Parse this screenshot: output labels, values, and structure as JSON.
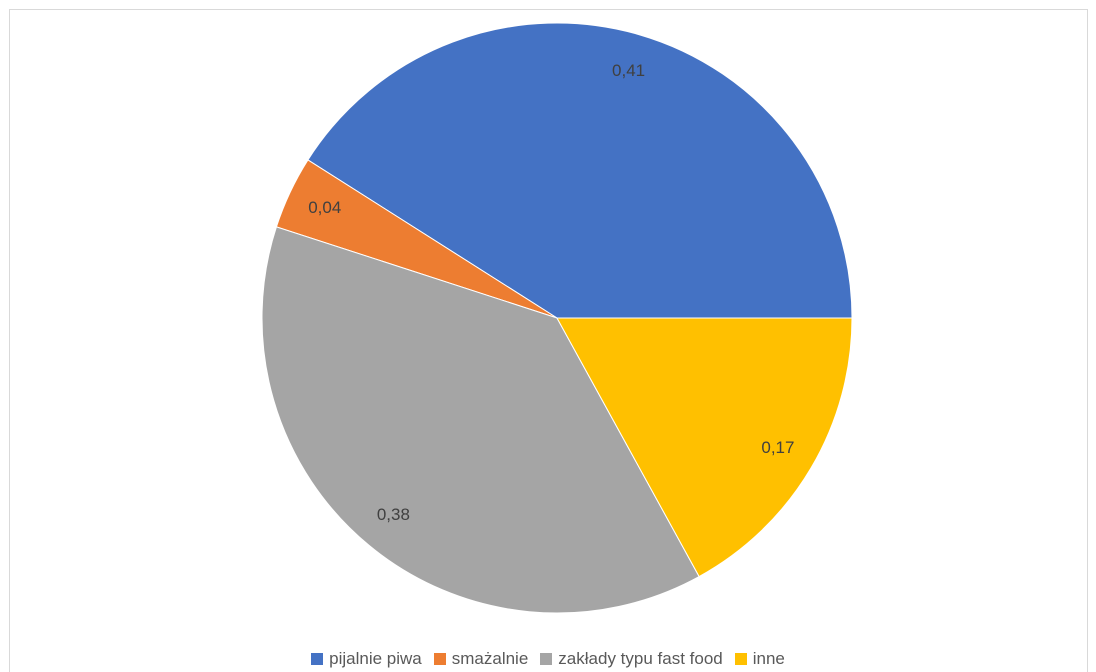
{
  "chart_data": {
    "type": "pie",
    "categories": [
      "pijalnie piwa",
      "smażalnie",
      "zakłady typu fast food",
      "inne"
    ],
    "values": [
      0.41,
      0.04,
      0.38,
      0.17
    ],
    "data_labels": [
      "0,41",
      "0,04",
      "0,38",
      "0,17"
    ],
    "colors": [
      "#4472C4",
      "#ED7D31",
      "#A5A5A5",
      "#FFC000"
    ],
    "start_angle_deg": 0,
    "direction": "counterclockwise",
    "legend_position": "bottom"
  }
}
